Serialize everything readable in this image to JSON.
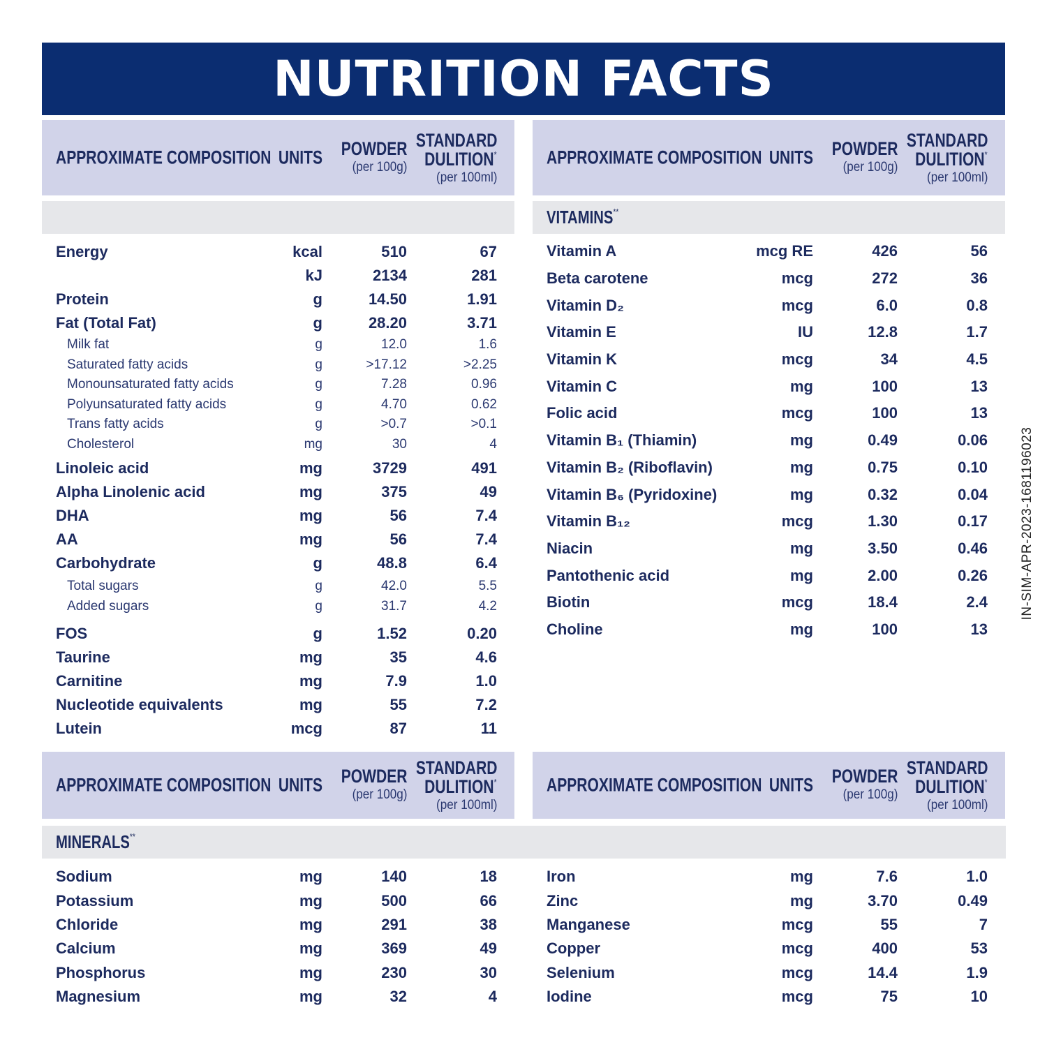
{
  "title": "NUTRITION FACTS",
  "code": "IN-SIM-APR-2023-1681196023",
  "colors": {
    "banner": "#0b2d71",
    "header_band": "#d1d3e9",
    "section_band": "#e6e7ea",
    "text": "#1c2a5e"
  },
  "header": {
    "composition": "APPROXIMATE COMPOSITION",
    "units": "UNITS",
    "powder": "POWDER",
    "powder_sub": "(per 100g)",
    "dilution1": "STANDARD",
    "dilution2": "DULITION",
    "dilution_mark": "*",
    "dilution_sub": "(per 100ml)"
  },
  "sections": {
    "vitamins": "VITAMINS",
    "minerals": "MINERALS",
    "mark": "**"
  },
  "left": [
    {
      "t": "m",
      "n": "Energy",
      "u": "kcal",
      "p": "510",
      "d": "67"
    },
    {
      "t": "m",
      "n": "",
      "u": "kJ",
      "p": "2134",
      "d": "281"
    },
    {
      "t": "m",
      "n": "Protein",
      "u": "g",
      "p": "14.50",
      "d": "1.91"
    },
    {
      "t": "m",
      "n": "Fat (Total Fat)",
      "u": "g",
      "p": "28.20",
      "d": "3.71"
    },
    {
      "t": "s",
      "n": "Milk fat",
      "u": "g",
      "p": "12.0",
      "d": "1.6"
    },
    {
      "t": "s",
      "n": "Saturated fatty acids",
      "u": "g",
      "p": ">17.12",
      "d": ">2.25"
    },
    {
      "t": "s",
      "n": "Monounsaturated fatty acids",
      "u": "g",
      "p": "7.28",
      "d": "0.96"
    },
    {
      "t": "s",
      "n": "Polyunsaturated fatty acids",
      "u": "g",
      "p": "4.70",
      "d": "0.62"
    },
    {
      "t": "s",
      "n": "Trans fatty acids",
      "u": "g",
      "p": ">0.7",
      "d": ">0.1"
    },
    {
      "t": "s",
      "n": "Cholesterol",
      "u": "mg",
      "p": "30",
      "d": "4"
    },
    {
      "t": "m",
      "n": "Linoleic acid",
      "u": "mg",
      "p": "3729",
      "d": "491",
      "gap": 3
    },
    {
      "t": "m",
      "n": "Alpha Linolenic acid",
      "u": "mg",
      "p": "375",
      "d": "49"
    },
    {
      "t": "m",
      "n": "DHA",
      "u": "mg",
      "p": "56",
      "d": "7.4"
    },
    {
      "t": "m",
      "n": "AA",
      "u": "mg",
      "p": "56",
      "d": "7.4"
    },
    {
      "t": "m",
      "n": "Carbohydrate",
      "u": "g",
      "p": "48.8",
      "d": "6.4"
    },
    {
      "t": "s",
      "n": "Total sugars",
      "u": "g",
      "p": "42.0",
      "d": "5.5",
      "gap": 2
    },
    {
      "t": "s",
      "n": "Added sugars",
      "u": "g",
      "p": "31.7",
      "d": "4.2"
    },
    {
      "t": "m",
      "n": "FOS",
      "u": "g",
      "p": "1.52",
      "d": "0.20",
      "gap": 8
    },
    {
      "t": "m",
      "n": "Taurine",
      "u": "mg",
      "p": "35",
      "d": "4.6"
    },
    {
      "t": "m",
      "n": "Carnitine",
      "u": "mg",
      "p": "7.9",
      "d": "1.0"
    },
    {
      "t": "m",
      "n": "Nucleotide equivalents",
      "u": "mg",
      "p": "55",
      "d": "7.2"
    },
    {
      "t": "m",
      "n": "Lutein",
      "u": "mcg",
      "p": "87",
      "d": "11"
    }
  ],
  "vitamins": [
    {
      "n": "Vitamin A",
      "u": "mcg RE",
      "p": "426",
      "d": "56"
    },
    {
      "n": "Beta carotene",
      "u": "mcg",
      "p": "272",
      "d": "36"
    },
    {
      "n": "Vitamin D₂",
      "u": "mcg",
      "p": "6.0",
      "d": "0.8"
    },
    {
      "n": "Vitamin E",
      "u": "IU",
      "p": "12.8",
      "d": "1.7"
    },
    {
      "n": "Vitamin K",
      "u": "mcg",
      "p": "34",
      "d": "4.5"
    },
    {
      "n": "Vitamin C",
      "u": "mg",
      "p": "100",
      "d": "13"
    },
    {
      "n": "Folic acid",
      "u": "mcg",
      "p": "100",
      "d": "13"
    },
    {
      "n": "Vitamin B₁ (Thiamin)",
      "u": "mg",
      "p": "0.49",
      "d": "0.06"
    },
    {
      "n": "Vitamin B₂ (Riboflavin)",
      "u": "mg",
      "p": "0.75",
      "d": "0.10"
    },
    {
      "n": "Vitamin B₆ (Pyridoxine)",
      "u": "mg",
      "p": "0.32",
      "d": "0.04"
    },
    {
      "n": "Vitamin B₁₂",
      "u": "mcg",
      "p": "1.30",
      "d": "0.17"
    },
    {
      "n": "Niacin",
      "u": "mg",
      "p": "3.50",
      "d": "0.46"
    },
    {
      "n": "Pantothenic acid",
      "u": "mg",
      "p": "2.00",
      "d": "0.26"
    },
    {
      "n": "Biotin",
      "u": "mcg",
      "p": "18.4",
      "d": "2.4"
    },
    {
      "n": "Choline",
      "u": "mg",
      "p": "100",
      "d": "13"
    }
  ],
  "minerals_left": [
    {
      "n": "Sodium",
      "u": "mg",
      "p": "140",
      "d": "18"
    },
    {
      "n": "Potassium",
      "u": "mg",
      "p": "500",
      "d": "66"
    },
    {
      "n": "Chloride",
      "u": "mg",
      "p": "291",
      "d": "38"
    },
    {
      "n": "Calcium",
      "u": "mg",
      "p": "369",
      "d": "49"
    },
    {
      "n": "Phosphorus",
      "u": "mg",
      "p": "230",
      "d": "30"
    },
    {
      "n": "Magnesium",
      "u": "mg",
      "p": "32",
      "d": "4"
    }
  ],
  "minerals_right": [
    {
      "n": "Iron",
      "u": "mg",
      "p": "7.6",
      "d": "1.0"
    },
    {
      "n": "Zinc",
      "u": "mg",
      "p": "3.70",
      "d": "0.49"
    },
    {
      "n": "Manganese",
      "u": "mcg",
      "p": "55",
      "d": "7"
    },
    {
      "n": "Copper",
      "u": "mcg",
      "p": "400",
      "d": "53"
    },
    {
      "n": "Selenium",
      "u": "mcg",
      "p": "14.4",
      "d": "1.9"
    },
    {
      "n": "Iodine",
      "u": "mcg",
      "p": "75",
      "d": "10"
    }
  ]
}
